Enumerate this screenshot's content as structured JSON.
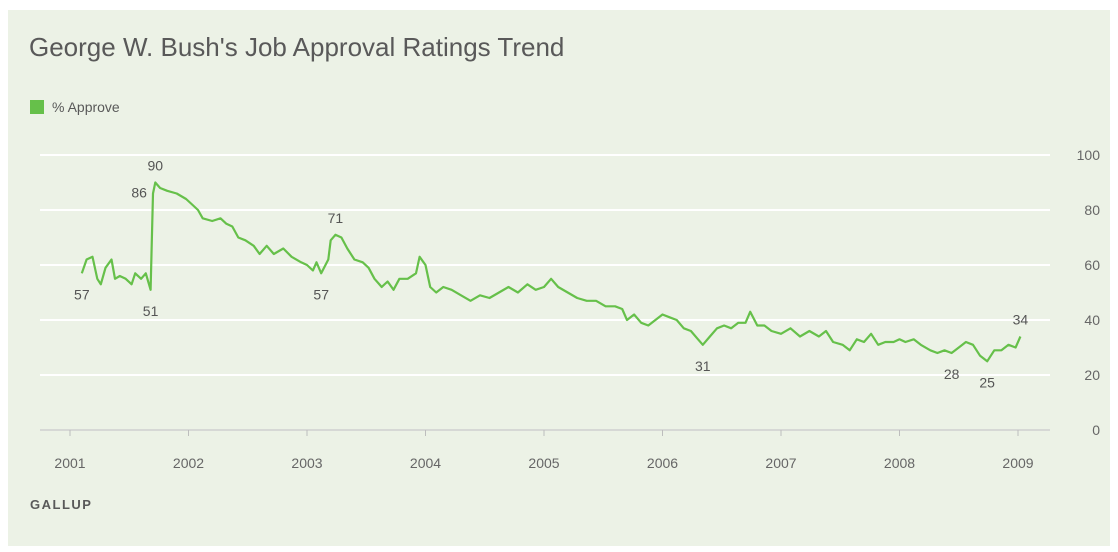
{
  "title": "George W. Bush's Job Approval Ratings Trend",
  "source": "GALLUP",
  "colors": {
    "series": "#66c04a",
    "background": "#ecf2e6",
    "grid": "#ffffff",
    "text": "#595959"
  },
  "chart_data": {
    "type": "line",
    "title": "George W. Bush's Job Approval Ratings Trend",
    "legend": {
      "position": "top-left"
    },
    "grid": true,
    "x_axis": {
      "type": "year",
      "ticks": [
        "2001",
        "2002",
        "2003",
        "2004",
        "2005",
        "2006",
        "2007",
        "2008",
        "2009"
      ],
      "range": [
        2001,
        2009.1
      ]
    },
    "y_axis": {
      "position": "right",
      "ticks": [
        "0",
        "20",
        "40",
        "60",
        "80",
        "100"
      ],
      "range": [
        0,
        100
      ]
    },
    "series": [
      {
        "name": "% Approve",
        "points": [
          [
            2001.1,
            57
          ],
          [
            2001.14,
            62
          ],
          [
            2001.19,
            63
          ],
          [
            2001.23,
            55
          ],
          [
            2001.26,
            53
          ],
          [
            2001.3,
            59
          ],
          [
            2001.35,
            62
          ],
          [
            2001.38,
            55
          ],
          [
            2001.42,
            56
          ],
          [
            2001.47,
            55
          ],
          [
            2001.52,
            53
          ],
          [
            2001.55,
            57
          ],
          [
            2001.6,
            55
          ],
          [
            2001.64,
            57
          ],
          [
            2001.68,
            51
          ],
          [
            2001.7,
            86
          ],
          [
            2001.72,
            90
          ],
          [
            2001.76,
            88
          ],
          [
            2001.82,
            87
          ],
          [
            2001.9,
            86
          ],
          [
            2001.98,
            84
          ],
          [
            2002.03,
            82
          ],
          [
            2002.08,
            80
          ],
          [
            2002.12,
            77
          ],
          [
            2002.2,
            76
          ],
          [
            2002.27,
            77
          ],
          [
            2002.32,
            75
          ],
          [
            2002.37,
            74
          ],
          [
            2002.42,
            70
          ],
          [
            2002.48,
            69
          ],
          [
            2002.55,
            67
          ],
          [
            2002.6,
            64
          ],
          [
            2002.66,
            67
          ],
          [
            2002.72,
            64
          ],
          [
            2002.8,
            66
          ],
          [
            2002.87,
            63
          ],
          [
            2002.95,
            61
          ],
          [
            2003.0,
            60
          ],
          [
            2003.05,
            58
          ],
          [
            2003.08,
            61
          ],
          [
            2003.12,
            57
          ],
          [
            2003.18,
            62
          ],
          [
            2003.2,
            69
          ],
          [
            2003.24,
            71
          ],
          [
            2003.29,
            70
          ],
          [
            2003.34,
            66
          ],
          [
            2003.4,
            62
          ],
          [
            2003.47,
            61
          ],
          [
            2003.52,
            59
          ],
          [
            2003.57,
            55
          ],
          [
            2003.63,
            52
          ],
          [
            2003.68,
            54
          ],
          [
            2003.73,
            51
          ],
          [
            2003.78,
            55
          ],
          [
            2003.85,
            55
          ],
          [
            2003.92,
            57
          ],
          [
            2003.95,
            63
          ],
          [
            2004.0,
            60
          ],
          [
            2004.04,
            52
          ],
          [
            2004.09,
            50
          ],
          [
            2004.15,
            52
          ],
          [
            2004.22,
            51
          ],
          [
            2004.3,
            49
          ],
          [
            2004.38,
            47
          ],
          [
            2004.46,
            49
          ],
          [
            2004.54,
            48
          ],
          [
            2004.62,
            50
          ],
          [
            2004.7,
            52
          ],
          [
            2004.78,
            50
          ],
          [
            2004.86,
            53
          ],
          [
            2004.93,
            51
          ],
          [
            2005.0,
            52
          ],
          [
            2005.06,
            55
          ],
          [
            2005.12,
            52
          ],
          [
            2005.2,
            50
          ],
          [
            2005.28,
            48
          ],
          [
            2005.36,
            47
          ],
          [
            2005.44,
            47
          ],
          [
            2005.52,
            45
          ],
          [
            2005.6,
            45
          ],
          [
            2005.66,
            44
          ],
          [
            2005.7,
            40
          ],
          [
            2005.76,
            42
          ],
          [
            2005.82,
            39
          ],
          [
            2005.88,
            38
          ],
          [
            2005.94,
            40
          ],
          [
            2006.0,
            42
          ],
          [
            2006.06,
            41
          ],
          [
            2006.12,
            40
          ],
          [
            2006.18,
            37
          ],
          [
            2006.24,
            36
          ],
          [
            2006.3,
            33
          ],
          [
            2006.34,
            31
          ],
          [
            2006.4,
            34
          ],
          [
            2006.46,
            37
          ],
          [
            2006.52,
            38
          ],
          [
            2006.58,
            37
          ],
          [
            2006.64,
            39
          ],
          [
            2006.7,
            39
          ],
          [
            2006.74,
            43
          ],
          [
            2006.8,
            38
          ],
          [
            2006.86,
            38
          ],
          [
            2006.92,
            36
          ],
          [
            2007.0,
            35
          ],
          [
            2007.08,
            37
          ],
          [
            2007.16,
            34
          ],
          [
            2007.24,
            36
          ],
          [
            2007.32,
            34
          ],
          [
            2007.38,
            36
          ],
          [
            2007.44,
            32
          ],
          [
            2007.52,
            31
          ],
          [
            2007.58,
            29
          ],
          [
            2007.64,
            33
          ],
          [
            2007.7,
            32
          ],
          [
            2007.76,
            35
          ],
          [
            2007.82,
            31
          ],
          [
            2007.88,
            32
          ],
          [
            2007.95,
            32
          ],
          [
            2008.0,
            33
          ],
          [
            2008.05,
            32
          ],
          [
            2008.12,
            33
          ],
          [
            2008.18,
            31
          ],
          [
            2008.26,
            29
          ],
          [
            2008.32,
            28
          ],
          [
            2008.38,
            29
          ],
          [
            2008.44,
            28
          ],
          [
            2008.5,
            30
          ],
          [
            2008.56,
            32
          ],
          [
            2008.62,
            31
          ],
          [
            2008.68,
            27
          ],
          [
            2008.74,
            25
          ],
          [
            2008.8,
            29
          ],
          [
            2008.86,
            29
          ],
          [
            2008.92,
            31
          ],
          [
            2008.98,
            30
          ],
          [
            2009.02,
            34
          ]
        ]
      }
    ],
    "annotations": [
      {
        "text": "57",
        "x": 2001.1,
        "y": 57,
        "side": "below"
      },
      {
        "text": "51",
        "x": 2001.68,
        "y": 51,
        "side": "below"
      },
      {
        "text": "86",
        "x": 2001.7,
        "y": 86,
        "side": "left"
      },
      {
        "text": "90",
        "x": 2001.72,
        "y": 90,
        "side": "above"
      },
      {
        "text": "57",
        "x": 2003.12,
        "y": 57,
        "side": "below"
      },
      {
        "text": "71",
        "x": 2003.24,
        "y": 71,
        "side": "above"
      },
      {
        "text": "31",
        "x": 2006.34,
        "y": 31,
        "side": "below"
      },
      {
        "text": "28",
        "x": 2008.44,
        "y": 28,
        "side": "below"
      },
      {
        "text": "25",
        "x": 2008.74,
        "y": 25,
        "side": "below"
      },
      {
        "text": "34",
        "x": 2009.02,
        "y": 34,
        "side": "above"
      }
    ]
  }
}
